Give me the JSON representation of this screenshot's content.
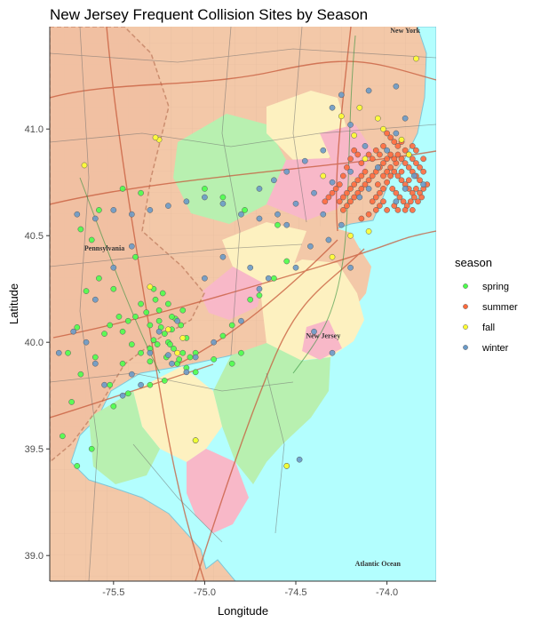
{
  "chart_data": {
    "type": "scatter",
    "title": "New Jersey Frequent Collision Sites by Season",
    "xlabel": "Longitude",
    "ylabel": "Latitude",
    "xlim": [
      -75.85,
      -73.73
    ],
    "ylim": [
      38.88,
      41.48
    ],
    "x_ticks": [
      {
        "value": -75.5,
        "label": "-75.5"
      },
      {
        "value": -75.0,
        "label": "-75.0"
      },
      {
        "value": -74.5,
        "label": "-74.5"
      },
      {
        "value": -74.0,
        "label": "-74.0"
      }
    ],
    "y_ticks": [
      {
        "value": 39.0,
        "label": "39.0"
      },
      {
        "value": 39.5,
        "label": "39.5"
      },
      {
        "value": 40.0,
        "label": "40.0"
      },
      {
        "value": 40.5,
        "label": "40.5"
      },
      {
        "value": 41.0,
        "label": "41.0"
      }
    ],
    "basemap_labels": [
      {
        "text": "Pennsylvania",
        "lon": -75.55,
        "lat": 40.43
      },
      {
        "text": "New Jersey",
        "lon": -74.35,
        "lat": 40.02
      },
      {
        "text": "New York",
        "lon": -73.9,
        "lat": 41.45
      },
      {
        "text": "Atlantic Ocean",
        "lon": -74.05,
        "lat": 38.95
      }
    ],
    "legend": {
      "title": "season",
      "placement": "right"
    },
    "series": [
      {
        "name": "spring",
        "color": "#4cff4c",
        "points": [
          [
            -75.23,
            40.23
          ],
          [
            -75.27,
            40.2
          ],
          [
            -75.2,
            40.18
          ],
          [
            -75.25,
            40.15
          ],
          [
            -75.16,
            40.11
          ],
          [
            -75.13,
            40.08
          ],
          [
            -75.18,
            40.06
          ],
          [
            -75.22,
            40.04
          ],
          [
            -75.1,
            40.02
          ],
          [
            -75.2,
            40.0
          ],
          [
            -75.26,
            39.99
          ],
          [
            -75.17,
            39.97
          ],
          [
            -75.12,
            39.95
          ],
          [
            -75.08,
            39.93
          ],
          [
            -75.21,
            39.93
          ],
          [
            -75.3,
            39.97
          ],
          [
            -75.35,
            39.95
          ],
          [
            -75.4,
            39.99
          ],
          [
            -75.42,
            40.1
          ],
          [
            -75.45,
            40.05
          ],
          [
            -75.38,
            40.12
          ],
          [
            -75.32,
            40.14
          ],
          [
            -75.28,
            40.25
          ],
          [
            -75.3,
            40.08
          ],
          [
            -75.15,
            39.9
          ],
          [
            -75.1,
            39.88
          ],
          [
            -75.05,
            39.86
          ],
          [
            -75.3,
            39.91
          ],
          [
            -75.45,
            39.9
          ],
          [
            -75.6,
            39.93
          ],
          [
            -75.55,
            40.04
          ],
          [
            -75.52,
            40.08
          ],
          [
            -75.47,
            40.12
          ],
          [
            -75.5,
            40.25
          ],
          [
            -75.58,
            40.3
          ],
          [
            -75.65,
            40.24
          ],
          [
            -75.7,
            40.07
          ],
          [
            -75.75,
            39.95
          ],
          [
            -75.68,
            39.85
          ],
          [
            -75.73,
            39.72
          ],
          [
            -75.78,
            39.56
          ],
          [
            -75.7,
            39.42
          ],
          [
            -75.62,
            39.5
          ],
          [
            -75.5,
            39.7
          ],
          [
            -75.52,
            39.8
          ],
          [
            -75.42,
            39.76
          ],
          [
            -75.3,
            39.8
          ],
          [
            -75.22,
            39.82
          ],
          [
            -75.18,
            40.12
          ],
          [
            -75.12,
            40.15
          ],
          [
            -75.28,
            40.01
          ],
          [
            -75.24,
            40.07
          ],
          [
            -75.19,
            39.99
          ],
          [
            -75.14,
            39.92
          ],
          [
            -74.9,
            40.03
          ],
          [
            -74.85,
            40.08
          ],
          [
            -74.75,
            40.2
          ],
          [
            -74.7,
            40.22
          ],
          [
            -74.62,
            40.3
          ],
          [
            -74.55,
            40.38
          ],
          [
            -74.6,
            40.55
          ],
          [
            -74.78,
            40.62
          ],
          [
            -74.9,
            40.68
          ],
          [
            -75.0,
            40.72
          ],
          [
            -75.05,
            39.54
          ],
          [
            -74.55,
            39.42
          ],
          [
            -75.35,
            40.7
          ],
          [
            -75.45,
            40.72
          ],
          [
            -75.58,
            40.62
          ],
          [
            -75.62,
            40.48
          ],
          [
            -75.68,
            40.53
          ],
          [
            -75.05,
            39.95
          ],
          [
            -74.95,
            39.92
          ],
          [
            -74.85,
            39.9
          ],
          [
            -74.8,
            39.95
          ],
          [
            -75.38,
            40.4
          ],
          [
            -75.35,
            40.18
          ],
          [
            -75.25,
            40.1
          ]
        ]
      },
      {
        "name": "summer",
        "color": "#ff6a3d",
        "points": [
          [
            -73.98,
            40.82
          ],
          [
            -73.96,
            40.8
          ],
          [
            -73.94,
            40.78
          ],
          [
            -73.92,
            40.76
          ],
          [
            -73.9,
            40.74
          ],
          [
            -73.88,
            40.72
          ],
          [
            -73.86,
            40.7
          ],
          [
            -73.84,
            40.72
          ],
          [
            -73.82,
            40.7
          ],
          [
            -73.88,
            40.76
          ],
          [
            -73.92,
            40.8
          ],
          [
            -73.95,
            40.84
          ],
          [
            -73.98,
            40.78
          ],
          [
            -74.0,
            40.75
          ],
          [
            -74.02,
            40.72
          ],
          [
            -74.04,
            40.7
          ],
          [
            -74.06,
            40.68
          ],
          [
            -74.08,
            40.66
          ],
          [
            -74.05,
            40.74
          ],
          [
            -74.02,
            40.78
          ],
          [
            -74.0,
            40.8
          ],
          [
            -73.97,
            40.72
          ],
          [
            -73.95,
            40.7
          ],
          [
            -73.93,
            40.68
          ],
          [
            -73.91,
            40.66
          ],
          [
            -73.89,
            40.64
          ],
          [
            -73.87,
            40.66
          ],
          [
            -73.85,
            40.68
          ],
          [
            -73.83,
            40.66
          ],
          [
            -73.81,
            40.68
          ],
          [
            -73.8,
            40.72
          ],
          [
            -73.82,
            40.76
          ],
          [
            -73.84,
            40.78
          ],
          [
            -73.86,
            40.8
          ],
          [
            -73.88,
            40.82
          ],
          [
            -73.9,
            40.84
          ],
          [
            -73.92,
            40.86
          ],
          [
            -73.94,
            40.88
          ],
          [
            -73.96,
            40.86
          ],
          [
            -73.98,
            40.88
          ],
          [
            -73.9,
            40.9
          ],
          [
            -73.88,
            40.88
          ],
          [
            -73.86,
            40.86
          ],
          [
            -73.84,
            40.84
          ],
          [
            -73.82,
            40.82
          ],
          [
            -73.8,
            40.8
          ],
          [
            -73.78,
            40.74
          ],
          [
            -74.0,
            40.86
          ],
          [
            -74.02,
            40.84
          ],
          [
            -74.04,
            40.82
          ],
          [
            -74.06,
            40.8
          ],
          [
            -74.08,
            40.78
          ],
          [
            -74.1,
            40.76
          ],
          [
            -74.12,
            40.74
          ],
          [
            -74.14,
            40.72
          ],
          [
            -74.16,
            40.7
          ],
          [
            -74.18,
            40.68
          ],
          [
            -74.2,
            40.66
          ],
          [
            -74.22,
            40.64
          ],
          [
            -74.24,
            40.62
          ],
          [
            -74.12,
            40.8
          ],
          [
            -74.14,
            40.78
          ],
          [
            -74.16,
            40.76
          ],
          [
            -74.18,
            40.74
          ],
          [
            -74.2,
            40.72
          ],
          [
            -74.22,
            40.7
          ],
          [
            -74.24,
            40.68
          ],
          [
            -74.26,
            40.66
          ],
          [
            -74.26,
            40.74
          ],
          [
            -74.24,
            40.78
          ],
          [
            -74.22,
            40.82
          ],
          [
            -74.2,
            40.86
          ],
          [
            -74.18,
            40.9
          ],
          [
            -74.16,
            40.88
          ],
          [
            -74.14,
            40.84
          ],
          [
            -74.06,
            40.62
          ],
          [
            -74.1,
            40.6
          ],
          [
            -74.14,
            40.58
          ],
          [
            -74.04,
            40.64
          ],
          [
            -74.02,
            40.66
          ],
          [
            -73.96,
            40.64
          ],
          [
            -73.94,
            40.62
          ],
          [
            -74.0,
            40.62
          ],
          [
            -74.28,
            40.72
          ],
          [
            -74.3,
            40.7
          ],
          [
            -74.32,
            40.68
          ],
          [
            -74.34,
            40.66
          ],
          [
            -73.98,
            40.96
          ],
          [
            -73.96,
            40.94
          ],
          [
            -74.0,
            40.98
          ],
          [
            -74.02,
            40.92
          ],
          [
            -73.94,
            40.92
          ],
          [
            -73.92,
            40.94
          ],
          [
            -73.86,
            40.92
          ],
          [
            -73.84,
            40.9
          ],
          [
            -73.8,
            40.86
          ],
          [
            -74.08,
            40.86
          ],
          [
            -74.1,
            40.88
          ],
          [
            -74.06,
            40.9
          ],
          [
            -74.04,
            40.88
          ],
          [
            -73.9,
            40.62
          ],
          [
            -73.86,
            40.62
          ]
        ]
      },
      {
        "name": "fall",
        "color": "#ffff33",
        "points": [
          [
            -75.25,
            40.95
          ],
          [
            -75.27,
            40.96
          ],
          [
            -75.66,
            40.83
          ],
          [
            -74.2,
            40.5
          ],
          [
            -74.1,
            40.52
          ],
          [
            -74.15,
            41.1
          ],
          [
            -74.02,
            41.0
          ],
          [
            -73.92,
            40.95
          ],
          [
            -74.35,
            40.78
          ],
          [
            -75.05,
            39.54
          ],
          [
            -74.55,
            39.42
          ],
          [
            -75.2,
            40.06
          ],
          [
            -75.3,
            40.26
          ],
          [
            -75.15,
            39.95
          ],
          [
            -74.3,
            40.4
          ],
          [
            -73.84,
            41.33
          ],
          [
            -74.12,
            40.86
          ],
          [
            -74.18,
            40.97
          ],
          [
            -74.25,
            41.06
          ],
          [
            -73.88,
            40.88
          ],
          [
            -74.05,
            41.05
          ],
          [
            -75.12,
            40.02
          ]
        ]
      },
      {
        "name": "winter",
        "color": "#6a9ac8",
        "points": [
          [
            -74.1,
            40.72
          ],
          [
            -74.15,
            40.68
          ],
          [
            -74.05,
            40.82
          ],
          [
            -74.0,
            40.9
          ],
          [
            -74.2,
            40.8
          ],
          [
            -74.3,
            40.75
          ],
          [
            -74.4,
            40.7
          ],
          [
            -74.5,
            40.65
          ],
          [
            -74.6,
            40.6
          ],
          [
            -74.7,
            40.58
          ],
          [
            -74.8,
            40.6
          ],
          [
            -74.9,
            40.65
          ],
          [
            -75.0,
            40.68
          ],
          [
            -75.1,
            40.66
          ],
          [
            -75.2,
            40.64
          ],
          [
            -75.3,
            40.62
          ],
          [
            -75.4,
            40.6
          ],
          [
            -75.5,
            40.62
          ],
          [
            -75.6,
            40.58
          ],
          [
            -75.7,
            40.6
          ],
          [
            -74.2,
            41.02
          ],
          [
            -74.3,
            41.1
          ],
          [
            -74.25,
            41.16
          ],
          [
            -74.1,
            41.18
          ],
          [
            -73.95,
            41.2
          ],
          [
            -73.9,
            41.05
          ],
          [
            -73.95,
            40.98
          ],
          [
            -74.12,
            40.92
          ],
          [
            -73.9,
            40.72
          ],
          [
            -73.95,
            40.66
          ],
          [
            -74.42,
            40.45
          ],
          [
            -74.5,
            40.35
          ],
          [
            -74.7,
            40.25
          ],
          [
            -74.8,
            40.1
          ],
          [
            -74.95,
            40.0
          ],
          [
            -75.05,
            39.93
          ],
          [
            -75.1,
            39.86
          ],
          [
            -75.2,
            39.94
          ],
          [
            -75.3,
            39.95
          ],
          [
            -75.4,
            39.85
          ],
          [
            -75.55,
            39.8
          ],
          [
            -75.6,
            39.9
          ],
          [
            -75.65,
            40.0
          ],
          [
            -75.72,
            40.05
          ],
          [
            -75.8,
            39.95
          ],
          [
            -75.6,
            40.2
          ],
          [
            -75.5,
            40.35
          ],
          [
            -75.4,
            40.45
          ],
          [
            -74.4,
            40.05
          ],
          [
            -74.3,
            39.95
          ],
          [
            -74.48,
            39.45
          ],
          [
            -75.15,
            40.1
          ],
          [
            -75.25,
            40.05
          ],
          [
            -75.18,
            39.9
          ],
          [
            -74.65,
            40.3
          ],
          [
            -74.75,
            40.35
          ],
          [
            -75.0,
            40.3
          ],
          [
            -74.9,
            40.4
          ],
          [
            -74.55,
            40.55
          ],
          [
            -74.35,
            40.6
          ],
          [
            -74.25,
            40.55
          ],
          [
            -74.32,
            40.48
          ],
          [
            -74.2,
            40.35
          ],
          [
            -73.85,
            40.78
          ],
          [
            -73.8,
            40.74
          ],
          [
            -74.35,
            40.9
          ],
          [
            -74.45,
            40.85
          ],
          [
            -74.55,
            40.8
          ],
          [
            -74.62,
            40.76
          ],
          [
            -74.7,
            40.72
          ],
          [
            -75.35,
            39.8
          ],
          [
            -75.45,
            39.75
          ]
        ]
      }
    ]
  }
}
